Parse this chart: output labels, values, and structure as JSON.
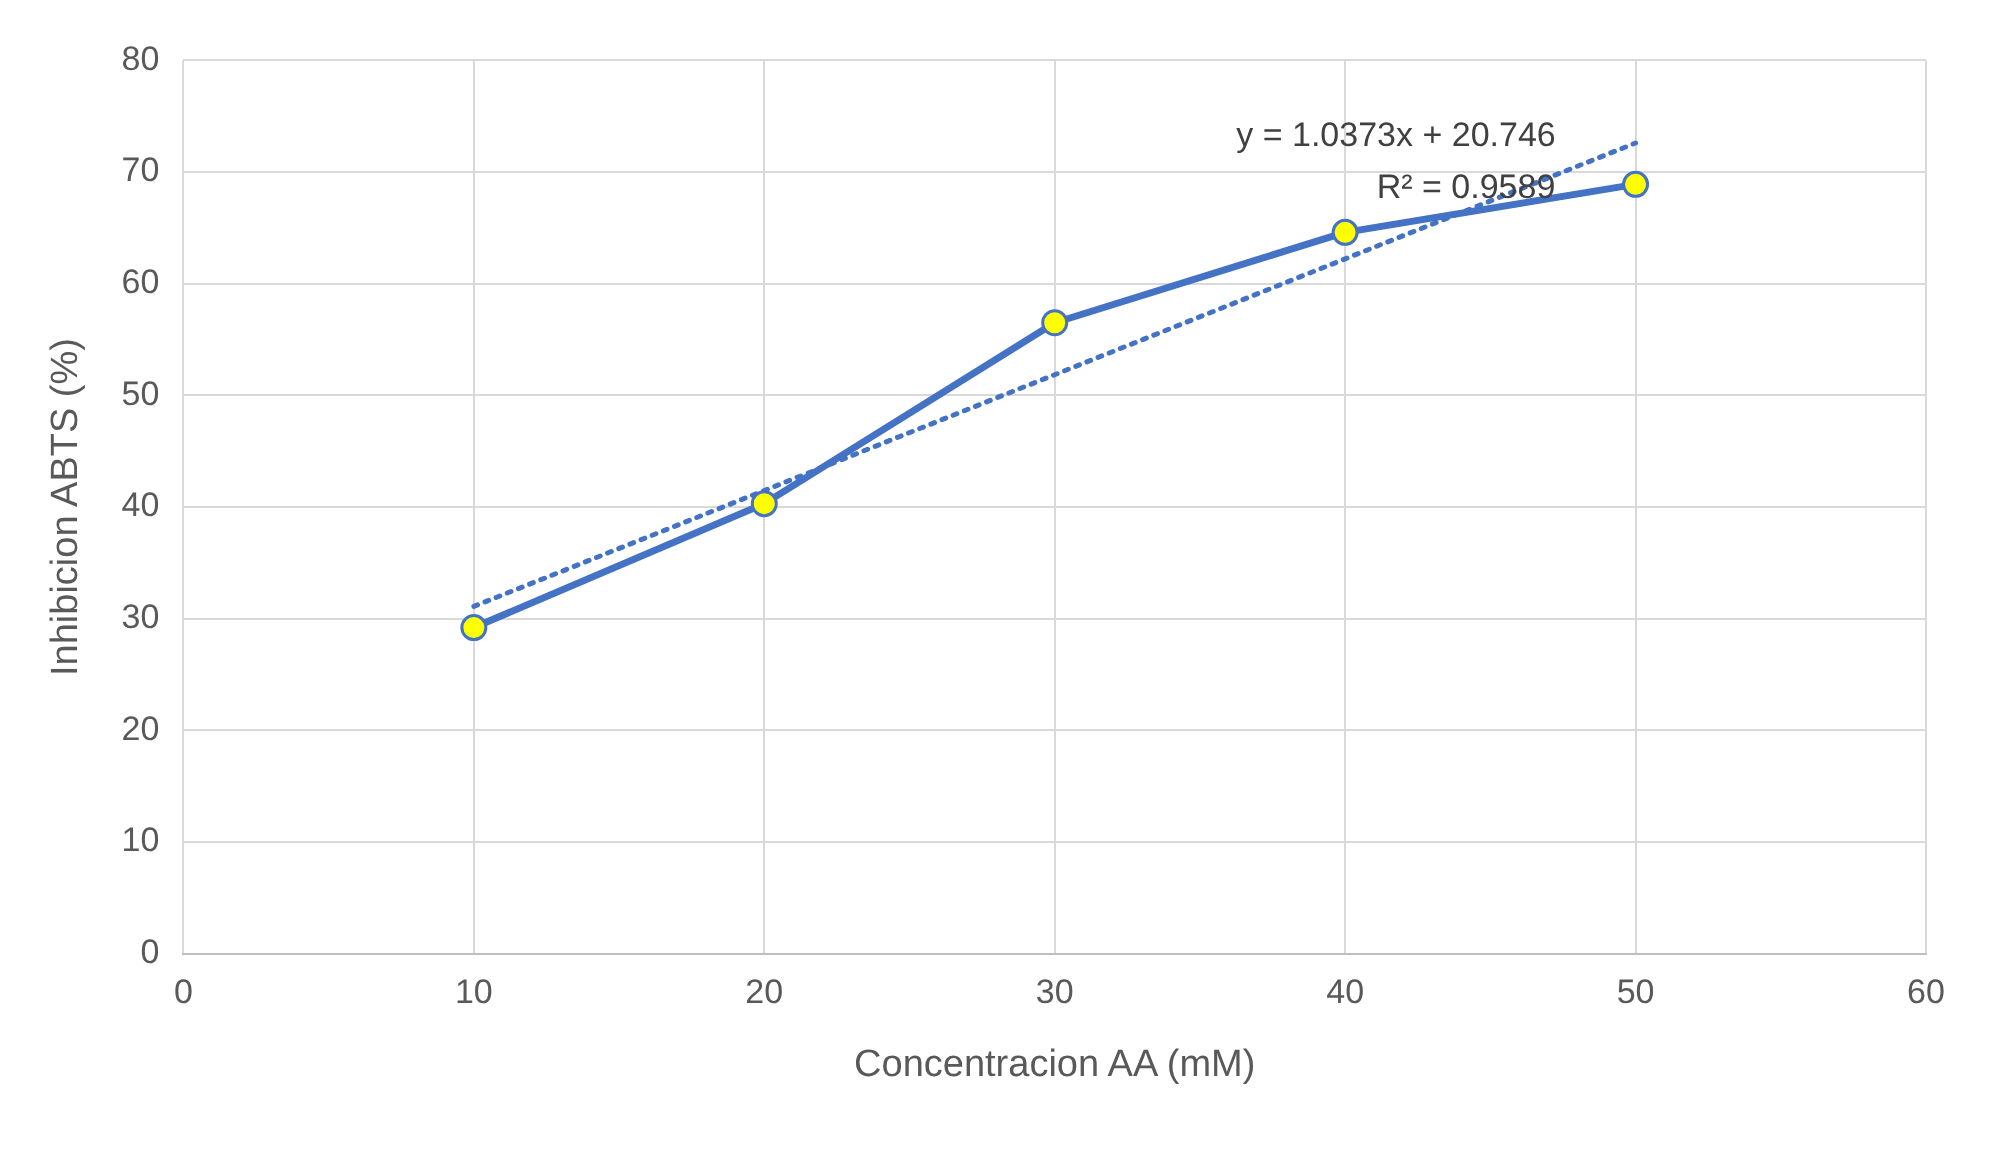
{
  "chart_data": {
    "type": "line",
    "xlabel": "Concentracion AA (mM)",
    "ylabel": "Inhibicion ABTS (%)",
    "xlim": [
      0,
      60
    ],
    "xticks": [
      0,
      10,
      20,
      30,
      40,
      50,
      60
    ],
    "ylim": [
      0,
      80
    ],
    "yticks": [
      0,
      10,
      20,
      30,
      40,
      50,
      60,
      70,
      80
    ],
    "grid": true,
    "legend": false,
    "marker": "circle",
    "line_style": "solid",
    "series": [
      {
        "type": "line",
        "color": "#4472c4",
        "x": [
          10,
          20,
          30,
          40,
          50
        ],
        "values": [
          29.2,
          40.3,
          56.5,
          64.6,
          68.9
        ]
      },
      {
        "type": "line",
        "color": "#4472c4",
        "line_style": "dotted",
        "marker": "none",
        "x": [
          10,
          50
        ],
        "values": [
          31.1,
          72.6
        ]
      }
    ],
    "annotations": [
      "y = 1.0373x + 20.746",
      "R² = 0.9589"
    ]
  }
}
